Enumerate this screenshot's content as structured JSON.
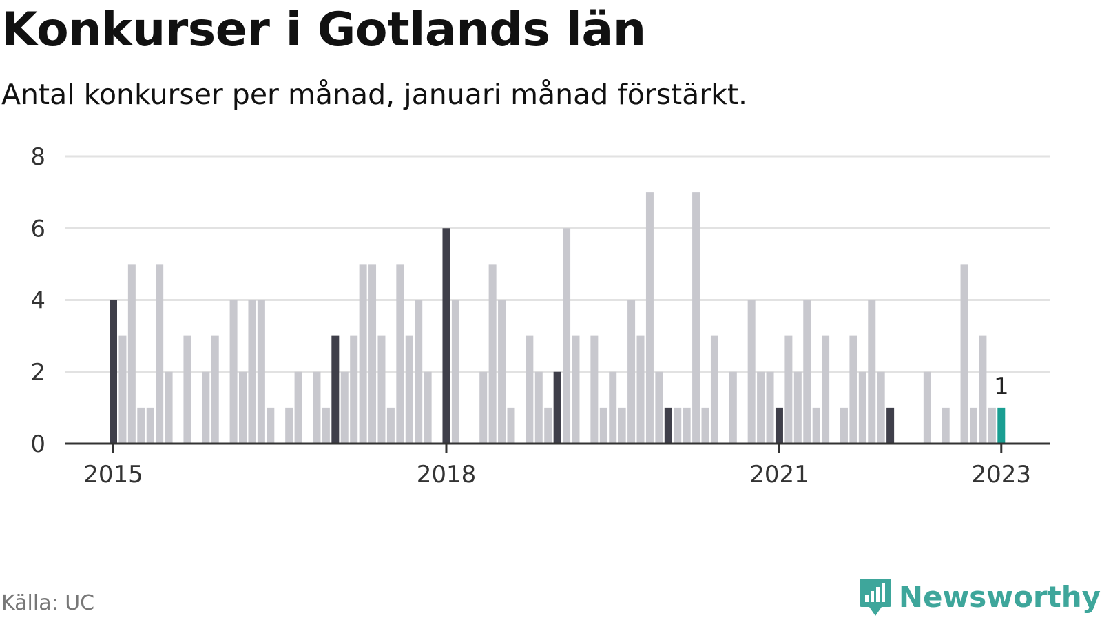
{
  "title": "Konkurser i Gotlands län",
  "subtitle": "Antal konkurser per månad, januari månad förstärkt.",
  "source": "Källa: UC",
  "brand": {
    "name": "Newsworthy",
    "icon": "newsworthy-logo-icon"
  },
  "colors": {
    "highlight": "#3f3f4a",
    "normal": "#c8c8ce",
    "latest": "#1a9e92",
    "axis": "#333333",
    "grid": "#e2e2e2"
  },
  "chart_data": {
    "type": "bar",
    "title": "Konkurser i Gotlands län",
    "xlabel": "",
    "ylabel": "",
    "ylim": [
      0,
      8
    ],
    "yticks": [
      0,
      2,
      4,
      6,
      8
    ],
    "xticks": [
      {
        "label": "2015",
        "date": "2015-01"
      },
      {
        "label": "2018",
        "date": "2018-01"
      },
      {
        "label": "2021",
        "date": "2021-01"
      },
      {
        "label": "2023",
        "date": "2023-01"
      }
    ],
    "grid": true,
    "start": "2015-01",
    "end": "2023-01",
    "values": [
      4,
      3,
      5,
      1,
      1,
      5,
      2,
      0,
      3,
      0,
      2,
      3,
      0,
      4,
      2,
      4,
      4,
      1,
      0,
      1,
      2,
      0,
      2,
      1,
      3,
      2,
      3,
      5,
      5,
      3,
      1,
      5,
      3,
      4,
      2,
      0,
      6,
      4,
      0,
      0,
      2,
      5,
      4,
      1,
      0,
      3,
      2,
      1,
      2,
      6,
      3,
      0,
      3,
      1,
      2,
      1,
      4,
      3,
      7,
      2,
      1,
      1,
      1,
      7,
      1,
      3,
      0,
      2,
      0,
      4,
      2,
      2,
      1,
      3,
      2,
      4,
      1,
      3,
      0,
      1,
      3,
      2,
      4,
      2,
      1,
      0,
      0,
      0,
      2,
      0,
      1,
      0,
      5,
      1,
      3,
      1,
      1
    ],
    "highlight_rule": "January bars darker; latest bar teal",
    "annotations": [
      {
        "date": "2023-01",
        "text": "1"
      }
    ]
  }
}
